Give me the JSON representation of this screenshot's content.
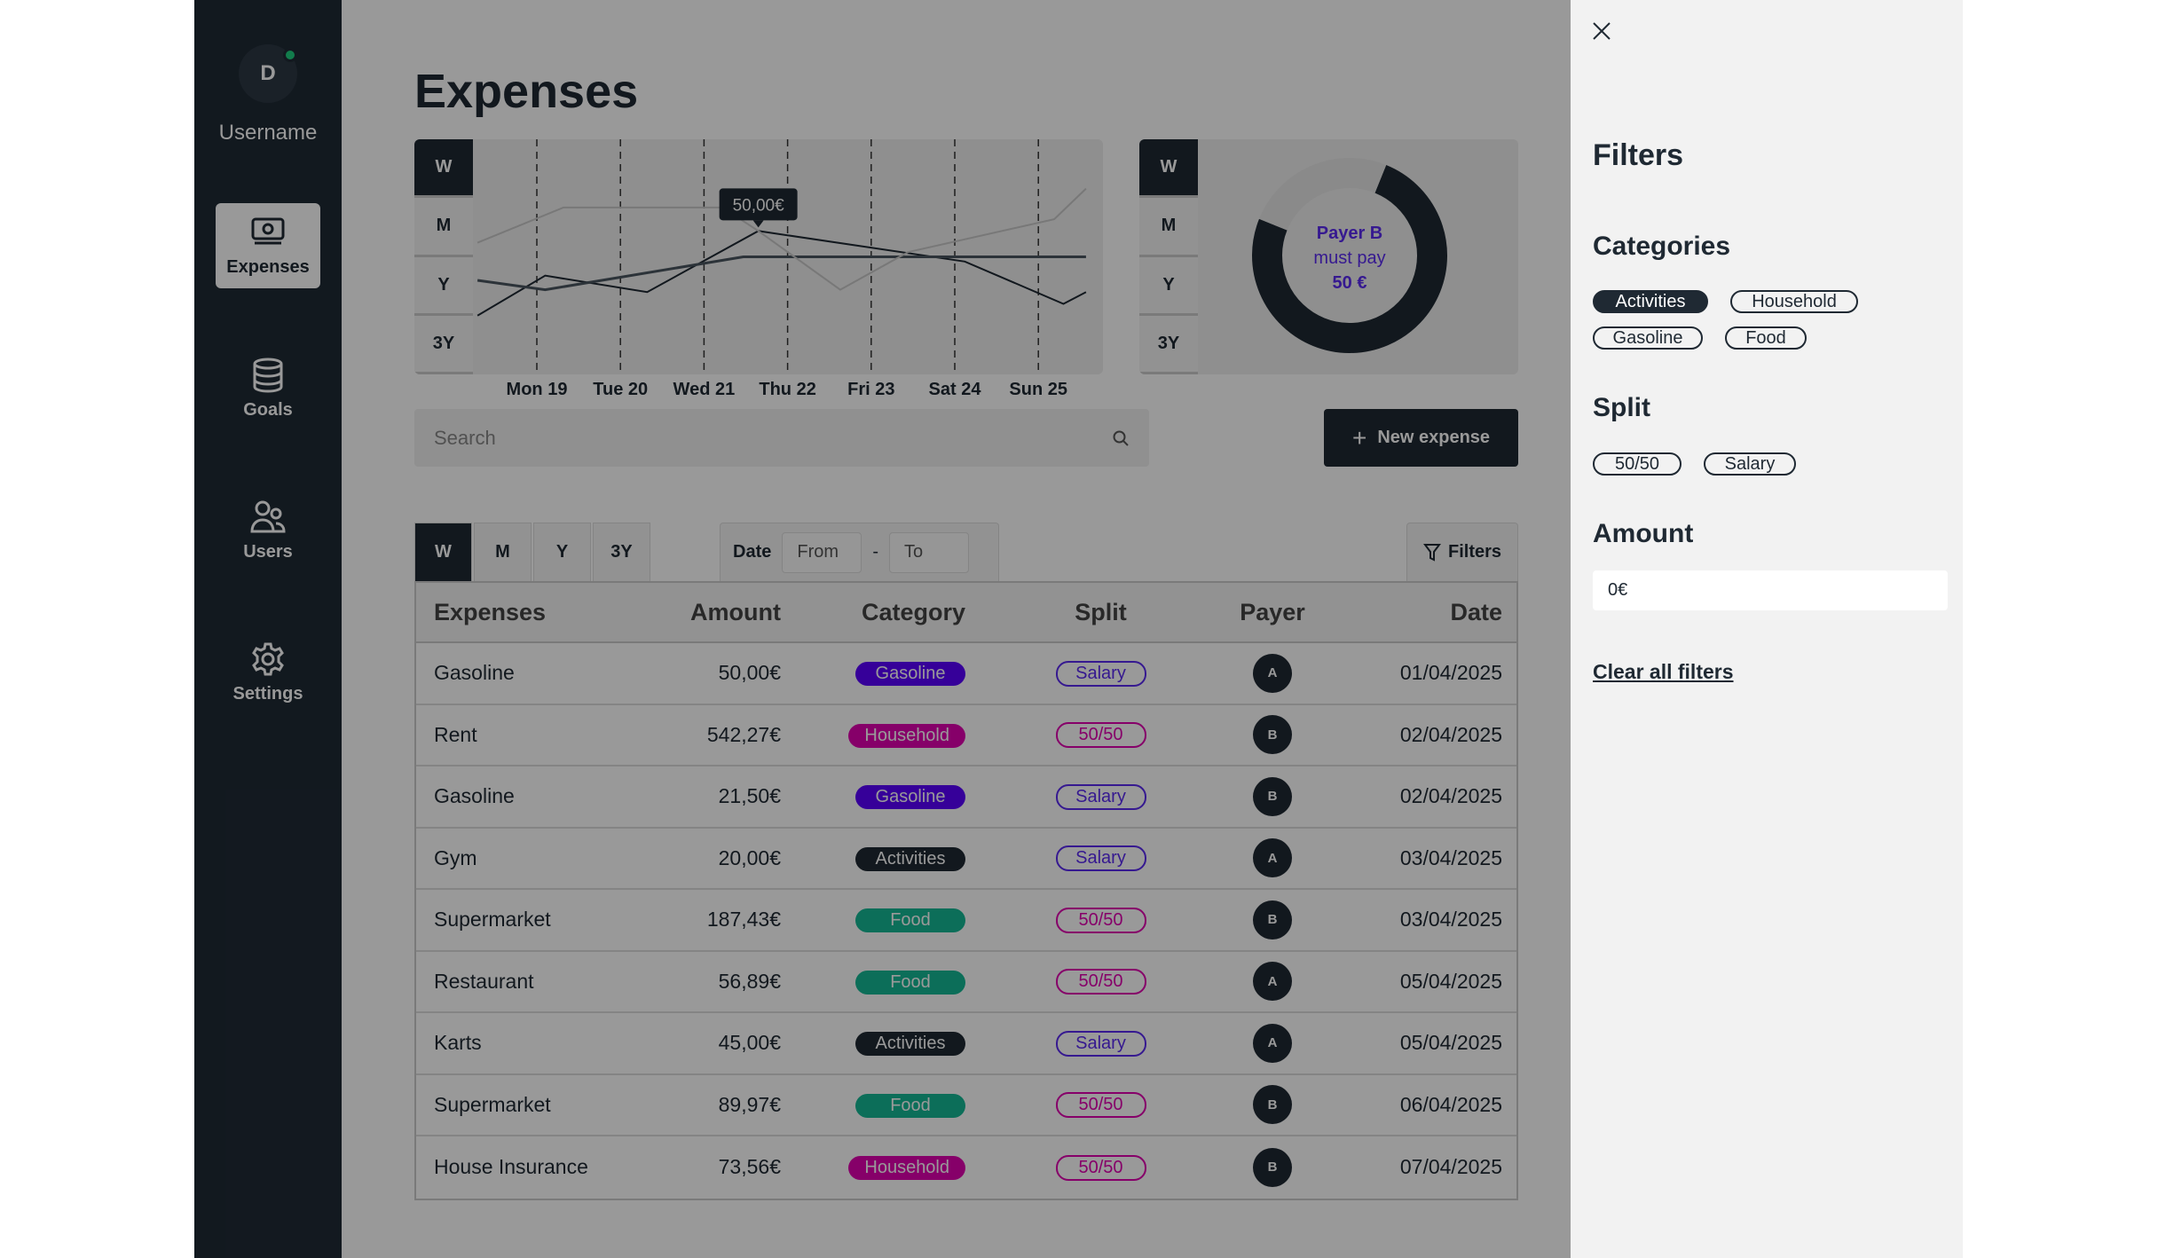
{
  "sidebar": {
    "avatar_initial": "D",
    "username": "Username",
    "items": [
      {
        "label": "Expenses",
        "icon": "money-icon"
      },
      {
        "label": "Goals",
        "icon": "database-icon"
      },
      {
        "label": "Users",
        "icon": "users-icon"
      },
      {
        "label": "Settings",
        "icon": "gear-icon"
      }
    ]
  },
  "main": {
    "title": "Expenses",
    "period_tabs": [
      "W",
      "M",
      "Y",
      "3Y"
    ],
    "search_placeholder": "Search",
    "new_expense": "New expense",
    "date_label": "Date",
    "from_placeholder": "From",
    "separator": "-",
    "to_placeholder": "To",
    "filters_button": "Filters"
  },
  "donut": {
    "line1": "Payer B",
    "line2": "must pay",
    "line3": "50 €",
    "shares": [
      75,
      25
    ],
    "colors": [
      "#1f2933",
      "#e6e6e6"
    ]
  },
  "chart_data": {
    "type": "line",
    "x_labels": [
      "Mon 19",
      "Tue 20",
      "Wed 21",
      "Thu 22",
      "Fri 23",
      "Sat 24",
      "Sun 25"
    ],
    "tooltip": "50,00€",
    "xlim": [
      -0.71,
      6.57
    ],
    "ylim": [
      0,
      100
    ],
    "series": [
      {
        "name": "dark",
        "color": "#1f2933",
        "x": [
          -0.71,
          0.1,
          1.32,
          2.65,
          5.12,
          6.3,
          6.57
        ],
        "y": [
          25,
          42,
          35,
          61,
          48,
          30,
          35
        ]
      },
      {
        "name": "medium",
        "color": "#4a5560",
        "x": [
          -0.71,
          0.1,
          2.47,
          6.57
        ],
        "y": [
          40,
          36,
          50,
          50
        ]
      },
      {
        "name": "light",
        "color": "#c8c8c8",
        "x": [
          -0.71,
          0.32,
          2.22,
          2.65,
          3.63,
          4.44,
          6.19,
          6.57
        ],
        "y": [
          56,
          71,
          71,
          61,
          36,
          52,
          66,
          79
        ]
      }
    ]
  },
  "table": {
    "headers": [
      "Expenses",
      "Amount",
      "Category",
      "Split",
      "Payer",
      "Date"
    ],
    "rows": [
      [
        "Gasoline",
        "50,00€",
        "Gasoline",
        "Salary",
        "A",
        "01/04/2025"
      ],
      [
        "Rent",
        "542,27€",
        "Household",
        "50/50",
        "B",
        "02/04/2025"
      ],
      [
        "Gasoline",
        "21,50€",
        "Gasoline",
        "Salary",
        "B",
        "02/04/2025"
      ],
      [
        "Gym",
        "20,00€",
        "Activities",
        "Salary",
        "A",
        "03/04/2025"
      ],
      [
        "Supermarket",
        "187,43€",
        "Food",
        "50/50",
        "B",
        "03/04/2025"
      ],
      [
        "Restaurant",
        "56,89€",
        "Food",
        "50/50",
        "A",
        "05/04/2025"
      ],
      [
        "Karts",
        "45,00€",
        "Activities",
        "Salary",
        "A",
        "05/04/2025"
      ],
      [
        "Supermarket",
        "89,97€",
        "Food",
        "50/50",
        "B",
        "06/04/2025"
      ],
      [
        "House Insurance",
        "73,56€",
        "Household",
        "50/50",
        "B",
        "07/04/2025"
      ]
    ],
    "category_colors": {
      "Gasoline": "#5a00ff",
      "Household": "#e000b0",
      "Food": "#14b894",
      "Activities": "#1f2933"
    },
    "split_colors": {
      "Salary": "#5a2bf0",
      "50/50": "#e000b0"
    }
  },
  "filters": {
    "title": "Filters",
    "categories_title": "Categories",
    "categories": [
      {
        "label": "Activities",
        "selected": true
      },
      {
        "label": "Household",
        "selected": false
      },
      {
        "label": "Gasoline",
        "selected": false
      },
      {
        "label": "Food",
        "selected": false
      }
    ],
    "split_title": "Split",
    "split": [
      {
        "label": "50/50",
        "selected": false
      },
      {
        "label": "Salary",
        "selected": false
      }
    ],
    "amount_title": "Amount",
    "amount_value": "0€",
    "clear": "Clear all filters"
  }
}
